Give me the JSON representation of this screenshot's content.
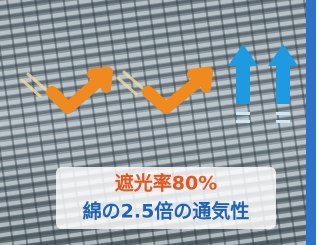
{
  "caption": {
    "line1": "遮光率80%",
    "line2": "綿の2.5倍の通気性"
  }
}
